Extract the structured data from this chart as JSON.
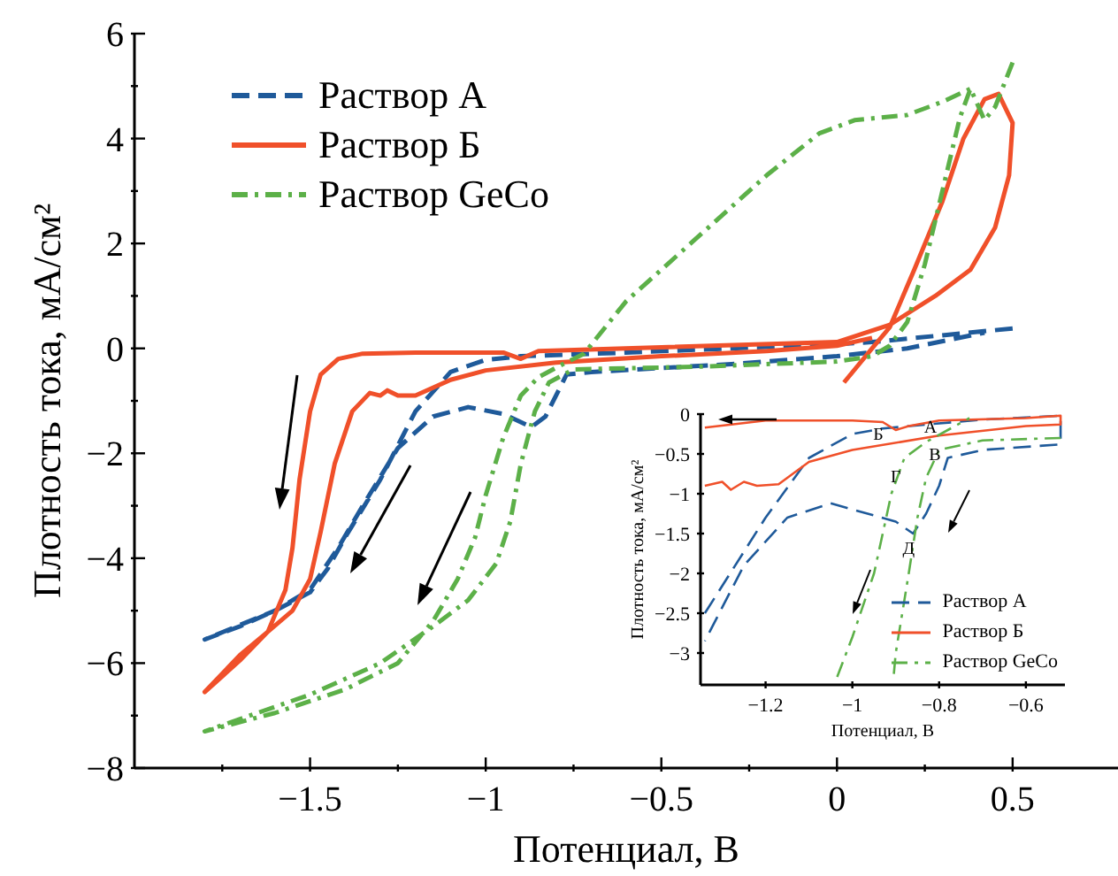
{
  "chart_data": [
    {
      "type": "line",
      "xlabel": "Потенциал, В",
      "ylabel": "Плотность тока, мА/см²",
      "legend": "top left",
      "xlim": [
        -2,
        0.8
      ],
      "ylim": [
        -8,
        6
      ],
      "xticks": [
        {
          "value": -1.75,
          "label": null
        },
        -1.5,
        {
          "value": -1.25,
          "label": null
        },
        -1,
        {
          "value": -0.75,
          "label": null
        },
        -0.5,
        {
          "value": -0.25,
          "label": null
        },
        0,
        {
          "value": 0.25,
          "label": null
        },
        0.5
      ],
      "yticks": [
        -8,
        {
          "value": -7,
          "label": null
        },
        -6,
        {
          "value": -5,
          "label": null
        },
        -4,
        {
          "value": -3,
          "label": null
        },
        -2,
        {
          "value": -1,
          "label": null
        },
        0,
        {
          "value": 1,
          "label": null
        },
        2,
        {
          "value": 3,
          "label": null
        },
        4,
        {
          "value": 5,
          "label": null
        },
        6
      ],
      "series": [
        {
          "name": "Раствор А",
          "color": "#1f5a9a",
          "line_style": "dashed",
          "x": [
            0.5,
            0.3,
            0.1,
            0,
            -0.3,
            -0.6,
            -0.9,
            -1.0,
            -1.1,
            -1.2,
            -1.3,
            -1.4,
            -1.45,
            -1.5,
            -1.6,
            -1.7,
            -1.8,
            -1.6,
            -1.5,
            -1.42,
            -1.35,
            -1.25,
            -1.15,
            -1.05,
            -0.95,
            -0.87,
            -0.83,
            -0.8,
            -0.77,
            -0.7,
            -0.3,
            0,
            0.2,
            0.42
          ],
          "values": [
            0.38,
            0.25,
            0.12,
            0.08,
            0,
            -0.08,
            -0.15,
            -0.22,
            -0.45,
            -1.2,
            -2.5,
            -3.6,
            -4.2,
            -4.65,
            -5.0,
            -5.3,
            -5.55,
            -5.0,
            -4.6,
            -3.8,
            -3.0,
            -1.9,
            -1.3,
            -1.12,
            -1.25,
            -1.5,
            -1.3,
            -0.9,
            -0.5,
            -0.45,
            -0.3,
            -0.15,
            0.0,
            0.3
          ]
        },
        {
          "name": "Раствор Б",
          "color": "#f0502a",
          "line_style": "solid",
          "x": [
            0.02,
            0.1,
            0.15,
            0.22,
            0.3,
            0.36,
            0.42,
            0.46,
            0.5,
            0.49,
            0.45,
            0.38,
            0.28,
            0.15,
            0,
            -0.5,
            -0.85,
            -0.9,
            -0.95,
            -1.2,
            -1.35,
            -1.42,
            -1.47,
            -1.5,
            -1.53,
            -1.55,
            -1.57,
            -1.62,
            -1.7,
            -1.8,
            -1.7,
            -1.62,
            -1.55,
            -1.5,
            -1.47,
            -1.43,
            -1.38,
            -1.33,
            -1.3,
            -1.28,
            -1.25,
            -1.2,
            -1.1,
            -1.0,
            -0.8,
            -0.5,
            -0.2,
            0,
            0.1
          ],
          "values": [
            -0.65,
            0.0,
            0.4,
            1.5,
            2.8,
            4.0,
            4.75,
            4.85,
            4.3,
            3.3,
            2.3,
            1.5,
            1.0,
            0.45,
            0.12,
            0.02,
            -0.05,
            -0.2,
            -0.08,
            -0.08,
            -0.1,
            -0.2,
            -0.5,
            -1.2,
            -2.5,
            -3.8,
            -4.6,
            -5.4,
            -5.95,
            -6.55,
            -5.85,
            -5.4,
            -5.0,
            -4.4,
            -3.5,
            -2.2,
            -1.2,
            -0.85,
            -0.9,
            -0.8,
            -0.9,
            -0.9,
            -0.6,
            -0.42,
            -0.27,
            -0.15,
            -0.05,
            0.05,
            0.2
          ]
        },
        {
          "name": "Раствор GeCo",
          "color": "#5cb048",
          "line_style": "dashdot",
          "x": [
            0.5,
            0.45,
            0.42,
            0.38,
            0.35,
            0.3,
            0.25,
            0.2,
            0.15,
            0.1,
            0,
            -0.4,
            -0.75,
            -0.82,
            -0.86,
            -0.9,
            -0.93,
            -0.97,
            -1.05,
            -1.15,
            -1.3,
            -1.5,
            -1.8,
            -1.6,
            -1.4,
            -1.25,
            -1.15,
            -1.08,
            -1.03,
            -1.0,
            -0.95,
            -0.9,
            -0.85,
            -0.78,
            -0.72,
            -0.6,
            -0.4,
            -0.2,
            -0.05,
            0.05,
            0.2,
            0.3,
            0.38
          ],
          "values": [
            5.45,
            4.6,
            4.35,
            4.95,
            4.4,
            3.0,
            1.6,
            0.5,
            0.05,
            -0.15,
            -0.25,
            -0.35,
            -0.4,
            -0.65,
            -1.2,
            -2.2,
            -3.3,
            -4.1,
            -4.8,
            -5.3,
            -6.0,
            -6.6,
            -7.3,
            -6.95,
            -6.5,
            -6.0,
            -5.2,
            -4.4,
            -3.6,
            -2.8,
            -1.7,
            -0.9,
            -0.55,
            -0.3,
            -0.1,
            0.9,
            2.1,
            3.3,
            4.1,
            4.35,
            4.45,
            4.7,
            4.95
          ]
        }
      ]
    },
    {
      "type": "line",
      "xlabel": "Потенциал, В",
      "ylabel": "Плотность тока, мА/см²",
      "legend": "bottom right",
      "xlim": [
        -1.35,
        -0.51
      ],
      "ylim": [
        -3.4,
        0
      ],
      "xticks": [
        -1.2,
        -1,
        -0.8,
        -0.6
      ],
      "yticks": [
        -3,
        -2.5,
        -2,
        -1.5,
        -1,
        -0.5,
        0
      ],
      "annotations": [
        {
          "text": "А",
          "x": -0.82,
          "y": -0.15
        },
        {
          "text": "Б",
          "x": -0.94,
          "y": -0.24
        },
        {
          "text": "В",
          "x": -0.81,
          "y": -0.5
        },
        {
          "text": "Г",
          "x": -0.9,
          "y": -0.78
        },
        {
          "text": "Д",
          "x": -0.87,
          "y": -1.68
        }
      ],
      "series": [
        {
          "name": "Раствор А",
          "color": "#1f5a9a",
          "line_style": "dashed",
          "x": [
            -1.34,
            -1.2,
            -1.1,
            -1.0,
            -0.93,
            -0.85,
            -0.7,
            -0.52,
            -0.52,
            -0.7,
            -0.78,
            -0.8,
            -0.83,
            -0.86,
            -0.9,
            -1.05,
            -1.15,
            -1.25,
            -1.34
          ],
          "values": [
            -2.5,
            -1.3,
            -0.55,
            -0.25,
            -0.18,
            -0.14,
            -0.07,
            -0.02,
            -0.38,
            -0.45,
            -0.55,
            -0.9,
            -1.25,
            -1.5,
            -1.35,
            -1.12,
            -1.3,
            -1.9,
            -2.85
          ]
        },
        {
          "name": "Раствор Б",
          "color": "#f0502a",
          "line_style": "solid",
          "x": [
            -1.34,
            -1.2,
            -1.0,
            -0.93,
            -0.9,
            -0.87,
            -0.8,
            -0.6,
            -0.52,
            -0.52,
            -0.6,
            -0.8,
            -1.0,
            -1.1,
            -1.17,
            -1.22,
            -1.25,
            -1.28,
            -1.3,
            -1.34
          ],
          "values": [
            -0.17,
            -0.08,
            -0.08,
            -0.1,
            -0.2,
            -0.15,
            -0.08,
            -0.05,
            -0.02,
            -0.13,
            -0.15,
            -0.27,
            -0.45,
            -0.6,
            -0.88,
            -0.9,
            -0.85,
            -0.95,
            -0.85,
            -0.9
          ]
        },
        {
          "name": "Раствор GeCo",
          "color": "#5cb048",
          "line_style": "dashdot",
          "x": [
            -0.52,
            -0.7,
            -0.8,
            -0.83,
            -0.85,
            -0.87,
            -0.9,
            -0.905,
            null,
            -1.035,
            -1.0,
            -0.95,
            -0.91,
            -0.88,
            -0.83,
            -0.78,
            -0.73
          ],
          "values": [
            -0.3,
            -0.33,
            -0.45,
            -0.8,
            -1.3,
            -2.0,
            -3.0,
            -3.3,
            null,
            -3.3,
            -2.8,
            -2.0,
            -1.0,
            -0.55,
            -0.35,
            -0.2,
            -0.05
          ]
        }
      ]
    }
  ]
}
